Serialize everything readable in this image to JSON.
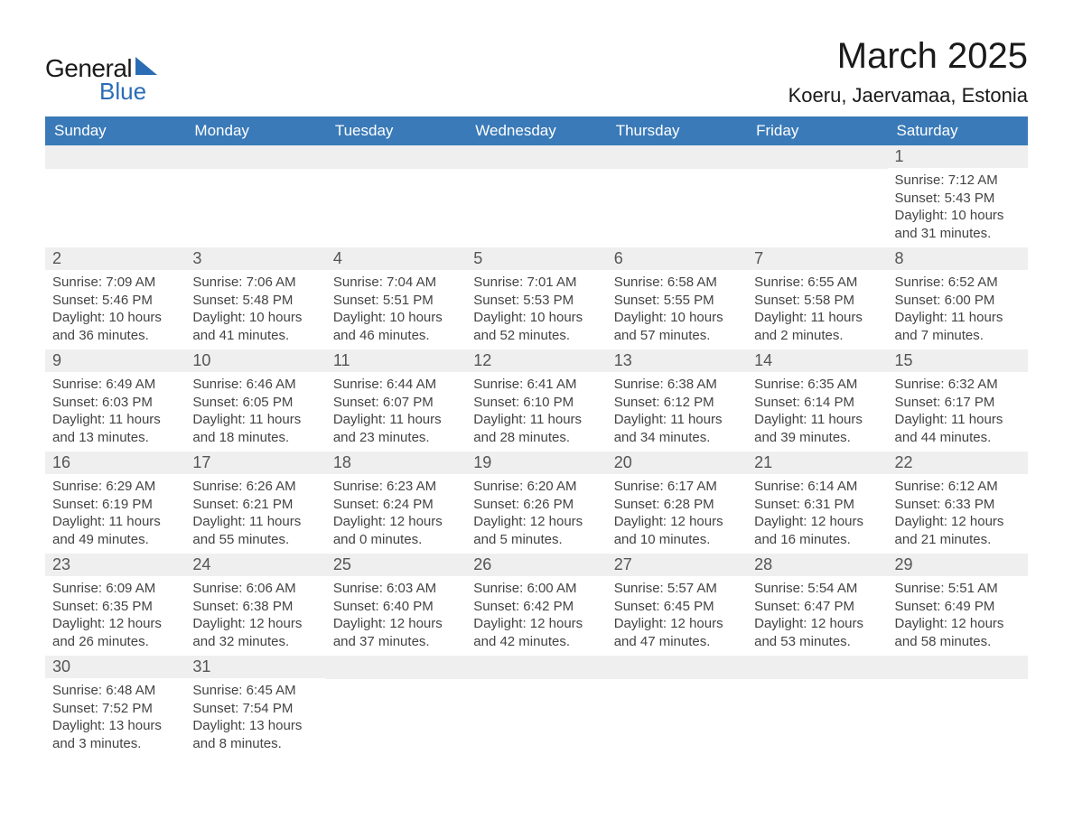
{
  "logo": {
    "text_general": "General",
    "text_blue": "Blue"
  },
  "header": {
    "month_title": "March 2025",
    "location": "Koeru, Jaervamaa, Estonia"
  },
  "calendar": {
    "type": "table",
    "header_bg": "#3a7ab8",
    "header_text_color": "#ffffff",
    "daynum_bg": "#efefef",
    "border_color": "#3a7ab8",
    "body_text_color": "#444444",
    "font_family": "Arial",
    "header_fontsize": 17,
    "daynum_fontsize": 18,
    "body_fontsize": 15,
    "columns": [
      "Sunday",
      "Monday",
      "Tuesday",
      "Wednesday",
      "Thursday",
      "Friday",
      "Saturday"
    ],
    "weeks": [
      [
        null,
        null,
        null,
        null,
        null,
        null,
        {
          "n": "1",
          "sr": "Sunrise: 7:12 AM",
          "ss": "Sunset: 5:43 PM",
          "d1": "Daylight: 10 hours",
          "d2": "and 31 minutes."
        }
      ],
      [
        {
          "n": "2",
          "sr": "Sunrise: 7:09 AM",
          "ss": "Sunset: 5:46 PM",
          "d1": "Daylight: 10 hours",
          "d2": "and 36 minutes."
        },
        {
          "n": "3",
          "sr": "Sunrise: 7:06 AM",
          "ss": "Sunset: 5:48 PM",
          "d1": "Daylight: 10 hours",
          "d2": "and 41 minutes."
        },
        {
          "n": "4",
          "sr": "Sunrise: 7:04 AM",
          "ss": "Sunset: 5:51 PM",
          "d1": "Daylight: 10 hours",
          "d2": "and 46 minutes."
        },
        {
          "n": "5",
          "sr": "Sunrise: 7:01 AM",
          "ss": "Sunset: 5:53 PM",
          "d1": "Daylight: 10 hours",
          "d2": "and 52 minutes."
        },
        {
          "n": "6",
          "sr": "Sunrise: 6:58 AM",
          "ss": "Sunset: 5:55 PM",
          "d1": "Daylight: 10 hours",
          "d2": "and 57 minutes."
        },
        {
          "n": "7",
          "sr": "Sunrise: 6:55 AM",
          "ss": "Sunset: 5:58 PM",
          "d1": "Daylight: 11 hours",
          "d2": "and 2 minutes."
        },
        {
          "n": "8",
          "sr": "Sunrise: 6:52 AM",
          "ss": "Sunset: 6:00 PM",
          "d1": "Daylight: 11 hours",
          "d2": "and 7 minutes."
        }
      ],
      [
        {
          "n": "9",
          "sr": "Sunrise: 6:49 AM",
          "ss": "Sunset: 6:03 PM",
          "d1": "Daylight: 11 hours",
          "d2": "and 13 minutes."
        },
        {
          "n": "10",
          "sr": "Sunrise: 6:46 AM",
          "ss": "Sunset: 6:05 PM",
          "d1": "Daylight: 11 hours",
          "d2": "and 18 minutes."
        },
        {
          "n": "11",
          "sr": "Sunrise: 6:44 AM",
          "ss": "Sunset: 6:07 PM",
          "d1": "Daylight: 11 hours",
          "d2": "and 23 minutes."
        },
        {
          "n": "12",
          "sr": "Sunrise: 6:41 AM",
          "ss": "Sunset: 6:10 PM",
          "d1": "Daylight: 11 hours",
          "d2": "and 28 minutes."
        },
        {
          "n": "13",
          "sr": "Sunrise: 6:38 AM",
          "ss": "Sunset: 6:12 PM",
          "d1": "Daylight: 11 hours",
          "d2": "and 34 minutes."
        },
        {
          "n": "14",
          "sr": "Sunrise: 6:35 AM",
          "ss": "Sunset: 6:14 PM",
          "d1": "Daylight: 11 hours",
          "d2": "and 39 minutes."
        },
        {
          "n": "15",
          "sr": "Sunrise: 6:32 AM",
          "ss": "Sunset: 6:17 PM",
          "d1": "Daylight: 11 hours",
          "d2": "and 44 minutes."
        }
      ],
      [
        {
          "n": "16",
          "sr": "Sunrise: 6:29 AM",
          "ss": "Sunset: 6:19 PM",
          "d1": "Daylight: 11 hours",
          "d2": "and 49 minutes."
        },
        {
          "n": "17",
          "sr": "Sunrise: 6:26 AM",
          "ss": "Sunset: 6:21 PM",
          "d1": "Daylight: 11 hours",
          "d2": "and 55 minutes."
        },
        {
          "n": "18",
          "sr": "Sunrise: 6:23 AM",
          "ss": "Sunset: 6:24 PM",
          "d1": "Daylight: 12 hours",
          "d2": "and 0 minutes."
        },
        {
          "n": "19",
          "sr": "Sunrise: 6:20 AM",
          "ss": "Sunset: 6:26 PM",
          "d1": "Daylight: 12 hours",
          "d2": "and 5 minutes."
        },
        {
          "n": "20",
          "sr": "Sunrise: 6:17 AM",
          "ss": "Sunset: 6:28 PM",
          "d1": "Daylight: 12 hours",
          "d2": "and 10 minutes."
        },
        {
          "n": "21",
          "sr": "Sunrise: 6:14 AM",
          "ss": "Sunset: 6:31 PM",
          "d1": "Daylight: 12 hours",
          "d2": "and 16 minutes."
        },
        {
          "n": "22",
          "sr": "Sunrise: 6:12 AM",
          "ss": "Sunset: 6:33 PM",
          "d1": "Daylight: 12 hours",
          "d2": "and 21 minutes."
        }
      ],
      [
        {
          "n": "23",
          "sr": "Sunrise: 6:09 AM",
          "ss": "Sunset: 6:35 PM",
          "d1": "Daylight: 12 hours",
          "d2": "and 26 minutes."
        },
        {
          "n": "24",
          "sr": "Sunrise: 6:06 AM",
          "ss": "Sunset: 6:38 PM",
          "d1": "Daylight: 12 hours",
          "d2": "and 32 minutes."
        },
        {
          "n": "25",
          "sr": "Sunrise: 6:03 AM",
          "ss": "Sunset: 6:40 PM",
          "d1": "Daylight: 12 hours",
          "d2": "and 37 minutes."
        },
        {
          "n": "26",
          "sr": "Sunrise: 6:00 AM",
          "ss": "Sunset: 6:42 PM",
          "d1": "Daylight: 12 hours",
          "d2": "and 42 minutes."
        },
        {
          "n": "27",
          "sr": "Sunrise: 5:57 AM",
          "ss": "Sunset: 6:45 PM",
          "d1": "Daylight: 12 hours",
          "d2": "and 47 minutes."
        },
        {
          "n": "28",
          "sr": "Sunrise: 5:54 AM",
          "ss": "Sunset: 6:47 PM",
          "d1": "Daylight: 12 hours",
          "d2": "and 53 minutes."
        },
        {
          "n": "29",
          "sr": "Sunrise: 5:51 AM",
          "ss": "Sunset: 6:49 PM",
          "d1": "Daylight: 12 hours",
          "d2": "and 58 minutes."
        }
      ],
      [
        {
          "n": "30",
          "sr": "Sunrise: 6:48 AM",
          "ss": "Sunset: 7:52 PM",
          "d1": "Daylight: 13 hours",
          "d2": "and 3 minutes."
        },
        {
          "n": "31",
          "sr": "Sunrise: 6:45 AM",
          "ss": "Sunset: 7:54 PM",
          "d1": "Daylight: 13 hours",
          "d2": "and 8 minutes."
        },
        null,
        null,
        null,
        null,
        null
      ]
    ]
  }
}
